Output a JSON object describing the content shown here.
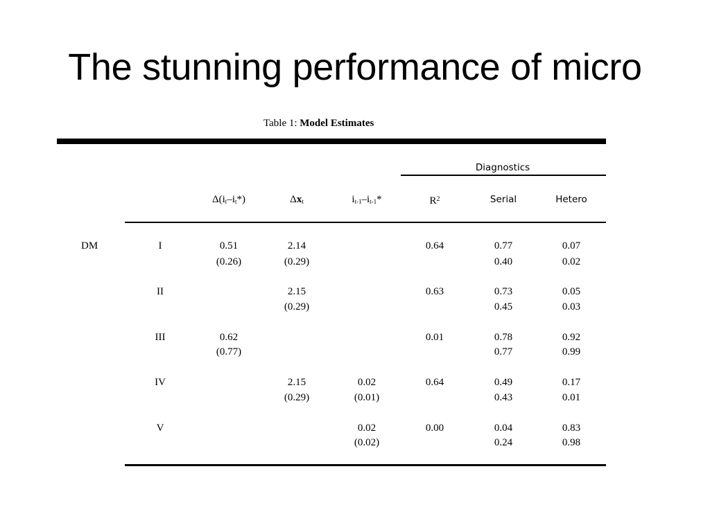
{
  "slide": {
    "title": "The stunning performance of micro"
  },
  "table": {
    "caption_prefix": "Table 1:",
    "caption_text": "Model Estimates",
    "group_header": "Diagnostics",
    "model_label": "DM",
    "headers": {
      "col1_delta": "Δ(i",
      "col1_sub_t": "t",
      "col1_minus": "–i",
      "col1_sub_t2": "t",
      "col1_end": "*)",
      "col2_delta": "Δ",
      "col2_x": "x",
      "col2_sub_t": "t",
      "col3_i": "i",
      "col3_sub1": "t-1",
      "col3_minus": "–i",
      "col3_sub2": "t-1",
      "col3_star": "*",
      "r2_base": "R",
      "r2_sup": "2",
      "serial": "Serial",
      "hetero": "Hetero"
    },
    "rows": [
      {
        "label": "I",
        "c1": "0.51",
        "c1_se": "(0.26)",
        "c2": "2.14",
        "c2_se": "(0.29)",
        "c3": "",
        "c3_se": "",
        "r2": "0.64",
        "serial": "0.77",
        "serial2": "0.40",
        "hetero": "0.07",
        "hetero2": "0.02"
      },
      {
        "label": "II",
        "c1": "",
        "c1_se": "",
        "c2": "2.15",
        "c2_se": "(0.29)",
        "c3": "",
        "c3_se": "",
        "r2": "0.63",
        "serial": "0.73",
        "serial2": "0.45",
        "hetero": "0.05",
        "hetero2": "0.03"
      },
      {
        "label": "III",
        "c1": "0.62",
        "c1_se": "(0.77)",
        "c2": "",
        "c2_se": "",
        "c3": "",
        "c3_se": "",
        "r2": "0.01",
        "serial": "0.78",
        "serial2": "0.77",
        "hetero": "0.92",
        "hetero2": "0.99"
      },
      {
        "label": "IV",
        "c1": "",
        "c1_se": "",
        "c2": "2.15",
        "c2_se": "(0.29)",
        "c3": "0.02",
        "c3_se": "(0.01)",
        "r2": "0.64",
        "serial": "0.49",
        "serial2": "0.43",
        "hetero": "0.17",
        "hetero2": "0.01"
      },
      {
        "label": "V",
        "c1": "",
        "c1_se": "",
        "c2": "",
        "c2_se": "",
        "c3": "0.02",
        "c3_se": "(0.02)",
        "r2": "0.00",
        "serial": "0.04",
        "serial2": "0.24",
        "hetero": "0.83",
        "hetero2": "0.98"
      }
    ]
  }
}
